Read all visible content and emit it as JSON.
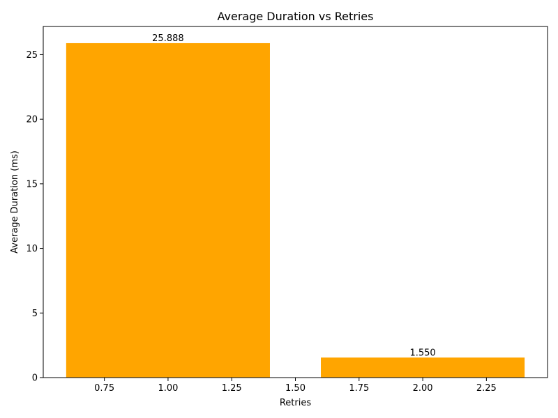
{
  "chart_data": {
    "type": "bar",
    "title": "Average Duration vs Retries",
    "xlabel": "Retries",
    "ylabel": "Average Duration (ms)",
    "bars": [
      {
        "x": 1,
        "width": 0.8,
        "value": 25.888,
        "label": "25.888"
      },
      {
        "x": 2,
        "width": 0.8,
        "value": 1.55,
        "label": "1.550"
      }
    ],
    "xlim": [
      0.51,
      2.49
    ],
    "ylim": [
      0,
      27.18
    ],
    "xticks": [
      0.75,
      1.0,
      1.25,
      1.5,
      1.75,
      2.0,
      2.25
    ],
    "xtick_labels": [
      "0.75",
      "1.00",
      "1.25",
      "1.50",
      "1.75",
      "2.00",
      "2.25"
    ],
    "yticks": [
      0,
      5,
      10,
      15,
      20,
      25
    ],
    "ytick_labels": [
      "0",
      "5",
      "10",
      "15",
      "20",
      "25"
    ],
    "bar_color": "#ffa500",
    "grid": false,
    "legend": "none"
  }
}
